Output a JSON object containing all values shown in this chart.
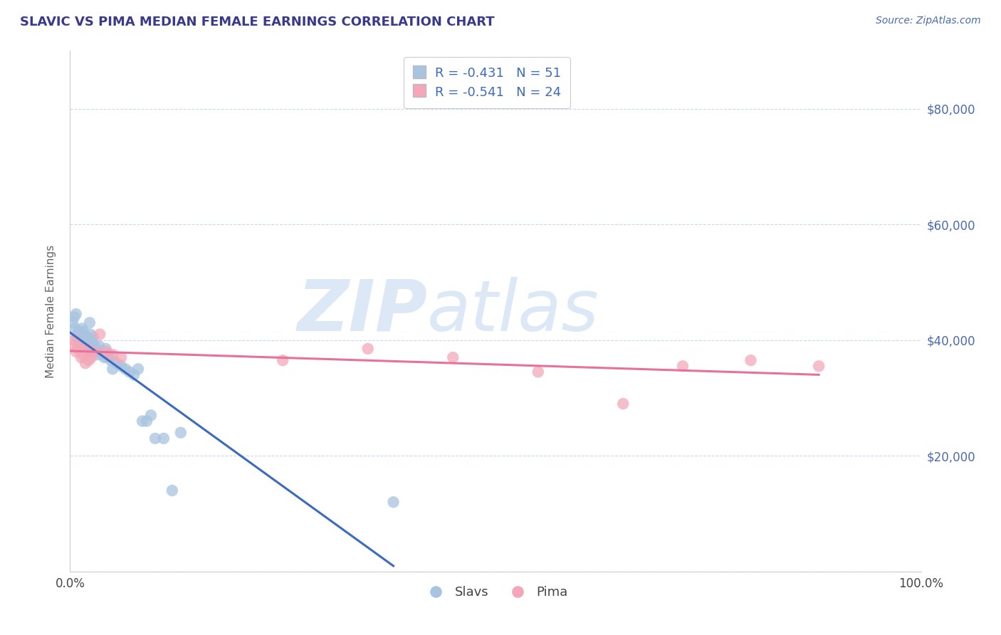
{
  "title": "SLAVIC VS PIMA MEDIAN FEMALE EARNINGS CORRELATION CHART",
  "source_text": "Source: ZipAtlas.com",
  "ylabel": "Median Female Earnings",
  "xlim": [
    0.0,
    1.0
  ],
  "ylim": [
    0,
    90000
  ],
  "yticks": [
    0,
    20000,
    40000,
    60000,
    80000
  ],
  "ytick_labels": [
    "",
    "$20,000",
    "$40,000",
    "$60,000",
    "$80,000"
  ],
  "xtick_labels": [
    "0.0%",
    "100.0%"
  ],
  "legend_labels": [
    "Slavs",
    "Pima"
  ],
  "legend_r_n": [
    {
      "r": "-0.431",
      "n": "51"
    },
    {
      "r": "-0.541",
      "n": "24"
    }
  ],
  "slavs_color": "#a8c4e0",
  "pima_color": "#f4a7b9",
  "slavs_line_color": "#3b6abf",
  "pima_line_color": "#e8709a",
  "background_color": "#ffffff",
  "watermark_zip": "ZIP",
  "watermark_atlas": "atlas",
  "watermark_color": "#dce8f5",
  "title_color": "#3a3a8c",
  "source_color": "#4a6ab0",
  "ylabel_color": "#666666",
  "slavs_x": [
    0.003,
    0.005,
    0.006,
    0.007,
    0.008,
    0.009,
    0.01,
    0.011,
    0.012,
    0.013,
    0.014,
    0.015,
    0.016,
    0.017,
    0.018,
    0.019,
    0.02,
    0.021,
    0.022,
    0.023,
    0.024,
    0.025,
    0.026,
    0.027,
    0.028,
    0.029,
    0.03,
    0.032,
    0.034,
    0.036,
    0.038,
    0.04,
    0.042,
    0.044,
    0.046,
    0.048,
    0.05,
    0.055,
    0.06,
    0.065,
    0.07,
    0.075,
    0.08,
    0.085,
    0.09,
    0.095,
    0.1,
    0.11,
    0.12,
    0.13,
    0.38
  ],
  "slavs_y": [
    43000,
    44000,
    42000,
    44500,
    40500,
    41000,
    41500,
    40000,
    39500,
    41000,
    42000,
    40000,
    41500,
    39000,
    40000,
    38500,
    40500,
    39000,
    38000,
    43000,
    41000,
    40000,
    39000,
    40500,
    38500,
    39000,
    38000,
    37500,
    39000,
    38000,
    37500,
    37000,
    38500,
    37000,
    37500,
    36500,
    35000,
    36000,
    35500,
    35000,
    34500,
    34000,
    35000,
    26000,
    26000,
    27000,
    23000,
    23000,
    14000,
    24000,
    12000
  ],
  "pima_x": [
    0.003,
    0.005,
    0.007,
    0.009,
    0.011,
    0.013,
    0.015,
    0.018,
    0.02,
    0.022,
    0.025,
    0.028,
    0.035,
    0.042,
    0.05,
    0.06,
    0.25,
    0.35,
    0.45,
    0.55,
    0.65,
    0.72,
    0.8,
    0.88
  ],
  "pima_y": [
    39000,
    40000,
    38000,
    38500,
    39000,
    37000,
    37500,
    36000,
    38500,
    36500,
    37000,
    38000,
    41000,
    38000,
    37500,
    37000,
    36500,
    38500,
    37000,
    34500,
    29000,
    35500,
    36500,
    35500
  ]
}
